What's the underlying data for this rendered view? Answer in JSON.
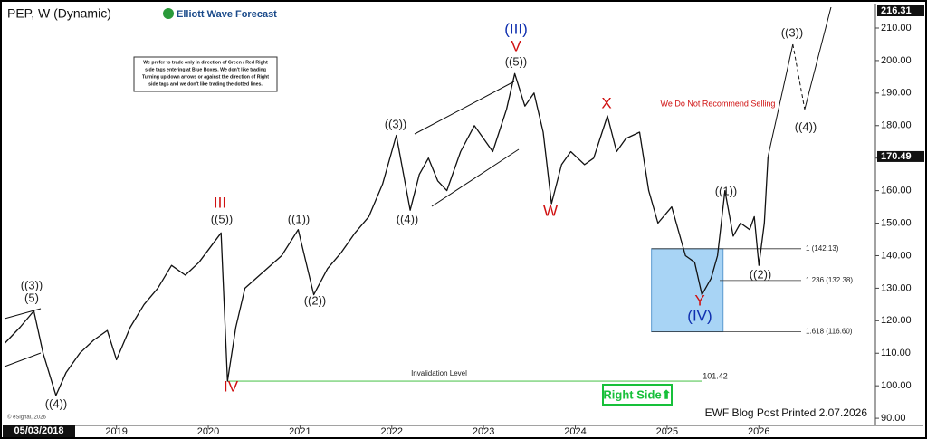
{
  "chart_data": {
    "type": "line",
    "title": "PEP, W (Dynamic)",
    "logo": "Elliott Wave Forecast",
    "note_lines": [
      "We prefer to trade only in direction of Green / Red Right",
      "side tags entering at Blue Boxes. We don't like trading",
      "Turning up/down arrows or against the direction of Right",
      "side tags and we don't like trading the dotted lines."
    ],
    "x": [
      2017.78,
      2017.95,
      2018.1,
      2018.2,
      2018.34,
      2018.45,
      2018.6,
      2018.75,
      2018.9,
      2019.0,
      2019.15,
      2019.3,
      2019.45,
      2019.6,
      2019.75,
      2019.9,
      2020.14,
      2020.21,
      2020.3,
      2020.4,
      2020.6,
      2020.8,
      2020.98,
      2021.15,
      2021.3,
      2021.45,
      2021.6,
      2021.75,
      2021.9,
      2022.05,
      2022.2,
      2022.3,
      2022.4,
      2022.5,
      2022.6,
      2022.75,
      2022.9,
      2023.1,
      2023.25,
      2023.34,
      2023.45,
      2023.55,
      2023.65,
      2023.74,
      2023.85,
      2023.95,
      2024.1,
      2024.2,
      2024.35,
      2024.45,
      2024.55,
      2024.7,
      2024.8,
      2024.9,
      2025.05,
      2025.2,
      2025.3,
      2025.38,
      2025.48,
      2025.55,
      2025.63,
      2025.72,
      2025.8,
      2025.9,
      2025.95,
      2026.0,
      2026.06,
      2026.1
    ],
    "values": [
      113,
      118,
      123,
      110,
      97,
      104,
      110,
      114,
      117,
      108,
      118,
      125,
      130,
      137,
      134,
      138,
      147,
      101.42,
      118,
      130,
      135,
      140,
      148,
      128,
      136,
      141,
      147,
      152,
      162,
      177,
      154,
      165,
      170,
      163,
      160,
      172,
      180,
      172,
      185,
      196,
      186,
      190,
      178,
      156,
      168,
      172,
      168,
      170,
      183,
      172,
      176,
      178,
      160,
      150,
      155,
      140,
      138,
      128,
      133,
      140,
      160,
      146,
      150,
      148,
      152,
      137,
      150,
      170.49
    ],
    "color": "#111111",
    "projection": {
      "x": [
        2026.1,
        2026.37
      ],
      "values": [
        170.49,
        205
      ]
    },
    "projection_dashed": {
      "x": [
        2026.37,
        2026.5
      ],
      "values": [
        205,
        185
      ]
    },
    "projection_next": {
      "x": [
        2026.5,
        2026.8
      ],
      "values": [
        185,
        218
      ]
    },
    "xlim": [
      2017.78,
      2027.27
    ],
    "ylim": [
      87.8,
      216.4
    ],
    "xticks": [
      2019,
      2020,
      2021,
      2022,
      2023,
      2024,
      2025,
      2026
    ],
    "yticks": [
      {
        "value": 90,
        "label": "90.00"
      },
      {
        "value": 100,
        "label": "100.00"
      },
      {
        "value": 110,
        "label": "110.00"
      },
      {
        "value": 120,
        "label": "120.00"
      },
      {
        "value": 130,
        "label": "130.00"
      },
      {
        "value": 140,
        "label": "140.00"
      },
      {
        "value": 150,
        "label": "150.00"
      },
      {
        "value": 160,
        "label": "160.00"
      },
      {
        "value": 170,
        "label": "170.00"
      },
      {
        "value": 180,
        "label": "180.00"
      },
      {
        "value": 190,
        "label": "190.00"
      },
      {
        "value": 200,
        "label": "200.00"
      },
      {
        "value": 210,
        "label": "210.00"
      }
    ],
    "price_tags": [
      216.31,
      170.49
    ],
    "fib_levels": [
      {
        "value": 142.13,
        "label": "1 (142.13)"
      },
      {
        "value": 132.38,
        "label": "1.236 (132.38)"
      },
      {
        "value": 116.6,
        "label": "1.618 (116.60)"
      }
    ],
    "invalidation": 101.42,
    "invalidation_text": "Invalidation Level",
    "start_date": "05/03/2018",
    "waves": [
      "((3))",
      "(5)",
      "((4))",
      "III",
      "((5))",
      "IV",
      "((1))",
      "((2))",
      "((3))",
      "((4))",
      "(III)",
      "V",
      "((5))",
      "W",
      "X",
      "Y",
      "(IV)",
      "((1))",
      "((2))",
      "((3))",
      "((4))"
    ],
    "warning": "We Do Not Recommend Selling",
    "right_side": "Right Side⬆",
    "footer": "EWF Blog Post Printed 2.07.2026",
    "copyright": "© eSignal, 2026"
  }
}
